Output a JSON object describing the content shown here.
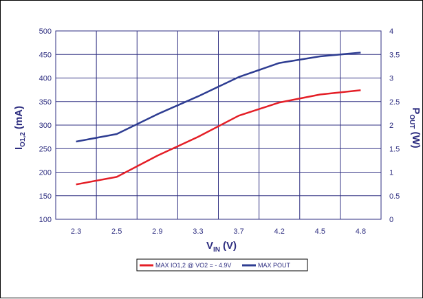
{
  "chart_data": {
    "type": "line",
    "categories": [
      "2.3",
      "2.5",
      "2.9",
      "3.3",
      "3.7",
      "4.2",
      "4.5",
      "4.8"
    ],
    "x_axis": {
      "label_main": "V",
      "label_sub": "IN",
      "label_unit": "(V)"
    },
    "y_left": {
      "label_main": "I",
      "label_sub": "O1,2",
      "label_unit": "(mA)",
      "range": [
        100,
        500
      ],
      "ticks": [
        100,
        150,
        200,
        250,
        300,
        350,
        400,
        450,
        500
      ]
    },
    "y_right": {
      "label_main": "P",
      "label_sub": "OUT",
      "label_unit": "(W)",
      "range": [
        0,
        4
      ],
      "ticks": [
        0,
        0.5,
        1,
        1.5,
        2,
        2.5,
        3,
        3.5,
        4
      ]
    },
    "grid": true,
    "legend_position": "bottom",
    "series": [
      {
        "name": "MAX IO1,2 @ VO2 = - 4.9V",
        "axis": "left",
        "color": "#e41e26",
        "values": [
          174,
          190,
          235,
          275,
          320,
          348,
          365,
          374
        ]
      },
      {
        "name": "MAX POUT",
        "axis": "right",
        "color": "#2e3d92",
        "values": [
          1.65,
          1.81,
          2.23,
          2.61,
          3.02,
          3.32,
          3.46,
          3.54
        ]
      }
    ]
  }
}
